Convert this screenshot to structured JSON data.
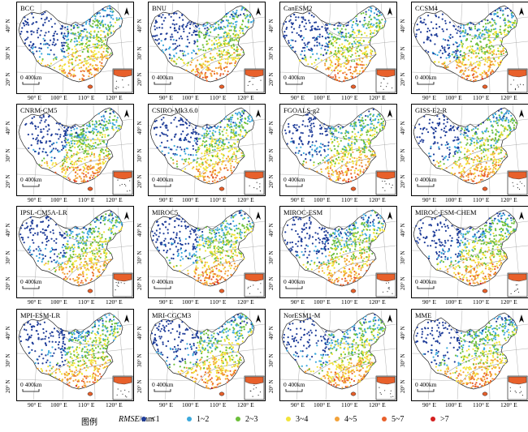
{
  "maps": [
    {
      "name": "BCC"
    },
    {
      "name": "BNU"
    },
    {
      "name": "CanESM2"
    },
    {
      "name": "CCSM4"
    },
    {
      "name": "CNRM-CM5"
    },
    {
      "name": "CSIRO-Mk3.6.0"
    },
    {
      "name": "FGOALS-g2"
    },
    {
      "name": "GISS-E2-R"
    },
    {
      "name": "IPSL-CM5A-LR"
    },
    {
      "name": "MIROC5"
    },
    {
      "name": "MIROC-ESM"
    },
    {
      "name": "MIROC-ESM-CHEM"
    },
    {
      "name": "MPI-ESM-LR"
    },
    {
      "name": "MRI-CGCM3"
    },
    {
      "name": "NorESM1-M"
    },
    {
      "name": "MME"
    }
  ],
  "axes": {
    "y_labels": [
      "40° N",
      "30° N",
      "20° N"
    ],
    "x_labels": [
      "90° E",
      "100° E",
      "110° E",
      "120° E"
    ]
  },
  "scale_label": "0  400km",
  "legend": {
    "title": "图例",
    "variable_italic": "RMSE",
    "variable_unit": "/mm",
    "classes": [
      {
        "label": "<1",
        "color": "#1f3d99"
      },
      {
        "label": "1~2",
        "color": "#3ba9dd"
      },
      {
        "label": "2~3",
        "color": "#6cbf3a"
      },
      {
        "label": "3~4",
        "color": "#f2e43a"
      },
      {
        "label": "4~5",
        "color": "#f2a23a"
      },
      {
        "label": "5~7",
        "color": "#e8602b"
      },
      {
        "label": ">7",
        "color": "#d41f1f"
      }
    ]
  }
}
